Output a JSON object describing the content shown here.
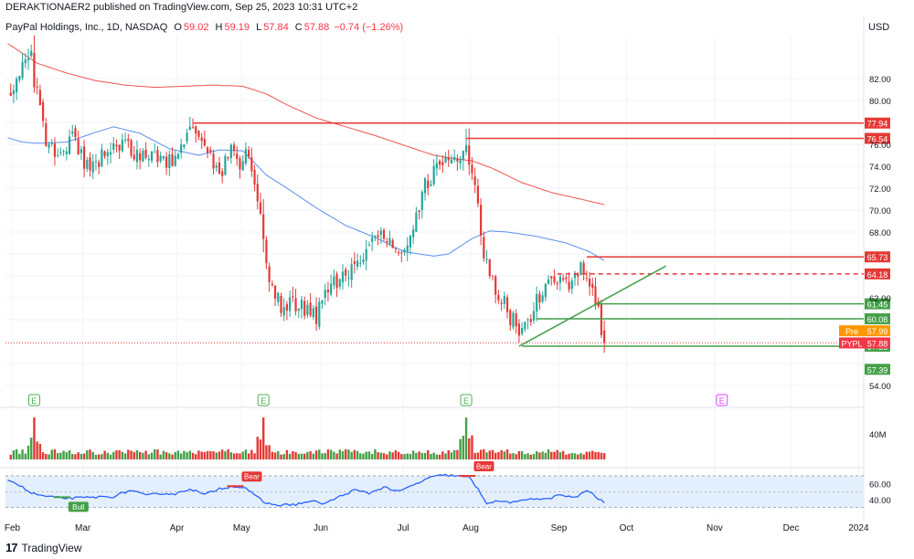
{
  "header": {
    "publisher": "DERAKTIONAER2 published on TradingView.com, Sep 25, 2023 10:31 UTC+2",
    "symbol_line": "PayPal Holdings, Inc., 1D, NASDAQ",
    "open_label": "O",
    "open": "59.02",
    "high_label": "H",
    "high": "59.19",
    "low_label": "L",
    "low": "57.84",
    "close_label": "C",
    "close": "57.88",
    "change": "−0.74 (−1.26%)",
    "currency": "USD"
  },
  "footer": {
    "brand": "TradingView",
    "brand_logo": "17"
  },
  "colors": {
    "up": "#26a69a",
    "up_volume": "#43a047",
    "down": "#e53935",
    "sma_fast": "#5b8def",
    "sma_slow": "#ef5350",
    "support": "#43a047",
    "resistance": "#e53935",
    "rsi_line": "#2962ff",
    "rsi_band": "#e3effc",
    "earnings_marker": "#4caf50",
    "earnings_marker_future": "#e040fb"
  },
  "chart_data": [
    {
      "type": "candlestick",
      "title": "PayPal Holdings, Inc., 1D, NASDAQ",
      "ylim": [
        52.5,
        85.5
      ],
      "y_ticks": [
        54,
        56,
        58,
        60,
        62,
        64,
        66,
        68,
        70,
        72,
        74,
        76,
        78,
        80,
        82
      ],
      "y_tick_labels_shown": [
        "54.00",
        "62.00",
        "68.00",
        "70.00",
        "72.00",
        "74.00",
        "76.00",
        "80.00",
        "82.00"
      ],
      "x_months": [
        "Feb",
        "Mar",
        "Apr",
        "May",
        "Jun",
        "Jul",
        "Aug",
        "Sep",
        "Oct",
        "Nov",
        "Dec",
        "2024"
      ],
      "anchors": [
        {
          "d": 0,
          "v": 80.5
        },
        {
          "d": 4,
          "v": 82.8
        },
        {
          "d": 8,
          "v": 83.3
        },
        {
          "d": 13,
          "v": 76.5
        },
        {
          "d": 17,
          "v": 75.0
        },
        {
          "d": 22,
          "v": 76.8
        },
        {
          "d": 28,
          "v": 73.4
        },
        {
          "d": 34,
          "v": 75.6
        },
        {
          "d": 40,
          "v": 75.8
        },
        {
          "d": 47,
          "v": 74.7
        },
        {
          "d": 52,
          "v": 74.8
        },
        {
          "d": 57,
          "v": 74.4
        },
        {
          "d": 62,
          "v": 77.2
        },
        {
          "d": 64,
          "v": 77.0
        },
        {
          "d": 67,
          "v": 75.2
        },
        {
          "d": 73,
          "v": 73.8
        },
        {
          "d": 77,
          "v": 75.9
        },
        {
          "d": 79,
          "v": 74.2
        },
        {
          "d": 82,
          "v": 75.6
        },
        {
          "d": 86,
          "v": 68.3
        },
        {
          "d": 89,
          "v": 63.8
        },
        {
          "d": 93,
          "v": 61.3
        },
        {
          "d": 99,
          "v": 61.3
        },
        {
          "d": 105,
          "v": 60.4
        },
        {
          "d": 110,
          "v": 63.2
        },
        {
          "d": 115,
          "v": 63.8
        },
        {
          "d": 120,
          "v": 65.3
        },
        {
          "d": 126,
          "v": 68.0
        },
        {
          "d": 131,
          "v": 66.5
        },
        {
          "d": 136,
          "v": 66.2
        },
        {
          "d": 142,
          "v": 72.4
        },
        {
          "d": 147,
          "v": 74.0
        },
        {
          "d": 151,
          "v": 74.8
        },
        {
          "d": 153,
          "v": 73.8
        },
        {
          "d": 156,
          "v": 75.6
        },
        {
          "d": 158,
          "v": 73.8
        },
        {
          "d": 162,
          "v": 66.3
        },
        {
          "d": 166,
          "v": 63.0
        },
        {
          "d": 171,
          "v": 60.3
        },
        {
          "d": 175,
          "v": 58.7
        },
        {
          "d": 180,
          "v": 61.6
        },
        {
          "d": 186,
          "v": 64.0
        },
        {
          "d": 191,
          "v": 63.2
        },
        {
          "d": 195,
          "v": 64.6
        },
        {
          "d": 197,
          "v": 63.8
        },
        {
          "d": 201,
          "v": 60.8
        },
        {
          "d": 203,
          "v": 57.9
        }
      ],
      "levels": [
        {
          "label": "77.94",
          "value": 77.94,
          "kind": "resistance",
          "style": "solid",
          "from_day": 63
        },
        {
          "label": "76.54",
          "value": 76.54,
          "kind": "resistance",
          "style": "solid",
          "from_day": 156
        },
        {
          "label": "65.73",
          "value": 65.73,
          "kind": "resistance",
          "style": "solid",
          "from_day": 197
        },
        {
          "label": "64.18",
          "value": 64.18,
          "kind": "resistance",
          "style": "dashed",
          "from_day": 187
        },
        {
          "label": "61.45",
          "value": 61.45,
          "kind": "support",
          "style": "solid",
          "from_day": 200
        },
        {
          "label": "60.08",
          "value": 60.08,
          "kind": "support",
          "style": "solid",
          "from_day": 180
        },
        {
          "label": "57.58",
          "value": 57.58,
          "kind": "support",
          "style": "solid",
          "from_day": 175
        }
      ],
      "trendline": {
        "from": {
          "d": 174,
          "v": 57.58
        },
        "to": {
          "d": 224,
          "v": 64.9
        }
      },
      "price_tags": [
        {
          "name": "Pre",
          "label": "57.99",
          "value": 57.99
        },
        {
          "name": "PYPL",
          "label": "57.88",
          "value": 57.88
        },
        {
          "name": "",
          "label": "57.39",
          "value": 57.39
        }
      ],
      "sma_fast": [
        {
          "d": 0,
          "v": 76.6
        },
        {
          "d": 5,
          "v": 76.2
        },
        {
          "d": 10,
          "v": 76.1
        },
        {
          "d": 20,
          "v": 76.2
        },
        {
          "d": 30,
          "v": 77.1
        },
        {
          "d": 36,
          "v": 77.6
        },
        {
          "d": 45,
          "v": 77.0
        },
        {
          "d": 55,
          "v": 75.6
        },
        {
          "d": 65,
          "v": 75.0
        },
        {
          "d": 72,
          "v": 75.5
        },
        {
          "d": 80,
          "v": 75.4
        },
        {
          "d": 88,
          "v": 73.2
        },
        {
          "d": 95,
          "v": 72.0
        },
        {
          "d": 105,
          "v": 70.2
        },
        {
          "d": 115,
          "v": 68.6
        },
        {
          "d": 125,
          "v": 67.5
        },
        {
          "d": 135,
          "v": 66.2
        },
        {
          "d": 145,
          "v": 65.8
        },
        {
          "d": 150,
          "v": 66.0
        },
        {
          "d": 158,
          "v": 67.4
        },
        {
          "d": 164,
          "v": 68.1
        },
        {
          "d": 170,
          "v": 68.0
        },
        {
          "d": 180,
          "v": 67.6
        },
        {
          "d": 190,
          "v": 67.0
        },
        {
          "d": 198,
          "v": 66.2
        },
        {
          "d": 203,
          "v": 65.4
        }
      ],
      "sma_slow": [
        {
          "d": 0,
          "v": 85.2
        },
        {
          "d": 10,
          "v": 83.4
        },
        {
          "d": 20,
          "v": 82.5
        },
        {
          "d": 30,
          "v": 81.8
        },
        {
          "d": 40,
          "v": 81.4
        },
        {
          "d": 50,
          "v": 81.2
        },
        {
          "d": 60,
          "v": 81.3
        },
        {
          "d": 70,
          "v": 81.4
        },
        {
          "d": 80,
          "v": 81.3
        },
        {
          "d": 88,
          "v": 80.6
        },
        {
          "d": 95,
          "v": 79.6
        },
        {
          "d": 105,
          "v": 78.4
        },
        {
          "d": 115,
          "v": 77.6
        },
        {
          "d": 125,
          "v": 76.8
        },
        {
          "d": 135,
          "v": 75.9
        },
        {
          "d": 145,
          "v": 75.0
        },
        {
          "d": 152,
          "v": 74.7
        },
        {
          "d": 158,
          "v": 74.5
        },
        {
          "d": 165,
          "v": 73.8
        },
        {
          "d": 175,
          "v": 72.5
        },
        {
          "d": 185,
          "v": 71.6
        },
        {
          "d": 195,
          "v": 71.0
        },
        {
          "d": 203,
          "v": 70.5
        }
      ],
      "earnings": [
        {
          "label": "E",
          "day": 9,
          "future": false
        },
        {
          "label": "E",
          "day": 87,
          "future": false
        },
        {
          "label": "E",
          "day": 156,
          "future": false
        },
        {
          "label": "E",
          "day": 243,
          "future": true
        }
      ]
    },
    {
      "type": "bar",
      "title": "Volume",
      "y_tick_label": "40M",
      "ylim": [
        0,
        50
      ]
    },
    {
      "type": "line",
      "title": "RSI",
      "ylim": [
        25,
        78
      ],
      "y_ticks": [
        60,
        40
      ],
      "y_tick_labels": [
        "60.00",
        "40.00"
      ],
      "band": [
        30,
        70
      ],
      "midline": 50,
      "anchors": [
        {
          "d": 0,
          "v": 66
        },
        {
          "d": 4,
          "v": 58
        },
        {
          "d": 8,
          "v": 48
        },
        {
          "d": 13,
          "v": 44
        },
        {
          "d": 18,
          "v": 42
        },
        {
          "d": 24,
          "v": 42
        },
        {
          "d": 30,
          "v": 43
        },
        {
          "d": 36,
          "v": 44
        },
        {
          "d": 42,
          "v": 52
        },
        {
          "d": 47,
          "v": 45
        },
        {
          "d": 52,
          "v": 48
        },
        {
          "d": 57,
          "v": 47
        },
        {
          "d": 62,
          "v": 54
        },
        {
          "d": 67,
          "v": 46
        },
        {
          "d": 72,
          "v": 54
        },
        {
          "d": 77,
          "v": 57
        },
        {
          "d": 81,
          "v": 55
        },
        {
          "d": 84,
          "v": 45
        },
        {
          "d": 88,
          "v": 35
        },
        {
          "d": 93,
          "v": 33
        },
        {
          "d": 98,
          "v": 34
        },
        {
          "d": 103,
          "v": 38
        },
        {
          "d": 108,
          "v": 35
        },
        {
          "d": 113,
          "v": 44
        },
        {
          "d": 118,
          "v": 52
        },
        {
          "d": 123,
          "v": 48
        },
        {
          "d": 128,
          "v": 56
        },
        {
          "d": 133,
          "v": 50
        },
        {
          "d": 138,
          "v": 58
        },
        {
          "d": 143,
          "v": 67
        },
        {
          "d": 148,
          "v": 71
        },
        {
          "d": 153,
          "v": 70
        },
        {
          "d": 157,
          "v": 68
        },
        {
          "d": 160,
          "v": 53
        },
        {
          "d": 163,
          "v": 36
        },
        {
          "d": 168,
          "v": 38
        },
        {
          "d": 173,
          "v": 36
        },
        {
          "d": 178,
          "v": 42
        },
        {
          "d": 183,
          "v": 40
        },
        {
          "d": 188,
          "v": 46
        },
        {
          "d": 193,
          "v": 42
        },
        {
          "d": 197,
          "v": 52
        },
        {
          "d": 200,
          "v": 44
        },
        {
          "d": 203,
          "v": 36
        }
      ],
      "annotations": [
        {
          "label": "Bull",
          "kind": "bull",
          "day": 20,
          "value": 43
        },
        {
          "label": "Bear",
          "kind": "bear",
          "day": 79,
          "value": 57
        },
        {
          "label": "Bear",
          "kind": "bear",
          "day": 158,
          "value": 70
        }
      ]
    }
  ]
}
